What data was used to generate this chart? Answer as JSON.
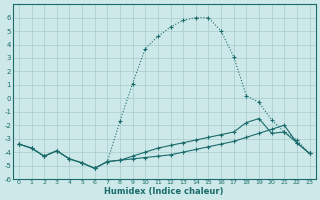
{
  "xlabel": "Humidex (Indice chaleur)",
  "bg_color": "#cde8e8",
  "grid_color": "#aacccc",
  "line_color": "#1a6b6b",
  "xlim": [
    -0.5,
    23.5
  ],
  "ylim": [
    -6,
    7
  ],
  "xticks": [
    0,
    1,
    2,
    3,
    4,
    5,
    6,
    7,
    8,
    9,
    10,
    11,
    12,
    13,
    14,
    15,
    16,
    17,
    18,
    19,
    20,
    21,
    22,
    23
  ],
  "yticks": [
    -6,
    -5,
    -4,
    -3,
    -2,
    -1,
    0,
    1,
    2,
    3,
    4,
    5,
    6
  ],
  "series1_x": [
    0,
    1,
    2,
    3,
    4,
    5,
    6,
    7,
    8,
    9,
    10,
    11,
    12,
    13,
    14,
    15,
    16,
    17,
    18,
    19,
    20,
    21,
    22,
    23
  ],
  "series1_y": [
    -3.4,
    -3.7,
    -4.3,
    -3.9,
    -4.5,
    -4.8,
    -5.2,
    -4.7,
    -1.7,
    1.1,
    3.7,
    4.6,
    5.3,
    5.8,
    6.0,
    6.0,
    5.0,
    3.1,
    0.2,
    -0.3,
    -1.6,
    -2.5,
    -3.1,
    -4.1
  ],
  "series2_x": [
    0,
    1,
    2,
    3,
    4,
    5,
    6,
    7,
    8,
    9,
    10,
    11,
    12,
    13,
    14,
    15,
    16,
    17,
    18,
    19,
    20,
    21,
    22,
    23
  ],
  "series2_y": [
    -3.4,
    -3.7,
    -4.3,
    -3.9,
    -4.5,
    -4.8,
    -5.2,
    -4.7,
    -4.6,
    -4.5,
    -4.4,
    -4.3,
    -4.2,
    -4.0,
    -3.8,
    -3.6,
    -3.4,
    -3.2,
    -2.9,
    -2.6,
    -2.3,
    -2.0,
    -3.3,
    -4.1
  ],
  "series3_x": [
    0,
    1,
    2,
    3,
    4,
    5,
    6,
    7,
    8,
    9,
    10,
    11,
    12,
    13,
    14,
    15,
    16,
    17,
    18,
    19,
    20,
    21,
    22,
    23
  ],
  "series3_y": [
    -3.4,
    -3.7,
    -4.3,
    -3.9,
    -4.5,
    -4.8,
    -5.2,
    -4.7,
    -4.6,
    -4.3,
    -4.0,
    -3.7,
    -3.5,
    -3.3,
    -3.1,
    -2.9,
    -2.7,
    -2.5,
    -1.8,
    -1.5,
    -2.6,
    -2.5,
    -3.3,
    -4.1
  ]
}
